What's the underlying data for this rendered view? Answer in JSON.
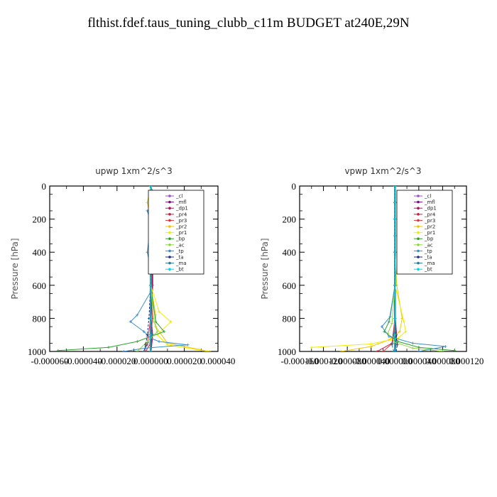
{
  "page": {
    "title": "flthist.fdef.taus_tuning_clubb_c11m  BUDGET at240E,29N"
  },
  "colors": {
    "cl": "#9a4fd6",
    "mfl": "#7a0f7a",
    "dp1": "#b0105a",
    "pr4": "#c81e3c",
    "pr3": "#e8303a",
    "pr2": "#f2c400",
    "pr1": "#f0ec00",
    "bp": "#2aa32a",
    "ac": "#8fd63a",
    "tp": "#3a8fc8",
    "ta": "#1a2a8a",
    "ma": "#2a7a9a",
    "bt": "#00d8e8"
  },
  "chart_data": [
    {
      "type": "line",
      "title": "upwp   1xm^2/s^3",
      "ylabel": "Pressure [hPa]",
      "xlabel": "",
      "xlim": [
        -6e-05,
        4e-05
      ],
      "ylim": [
        1000,
        0
      ],
      "y_reversed": true,
      "xticks": [
        -6e-05,
        -4e-05,
        -2e-05,
        0,
        2e-05,
        4e-05
      ],
      "xtick_labels": [
        "-0.000060",
        "-0.000040",
        "-0.000020",
        "0.000000",
        "0.000020",
        "0.000040"
      ],
      "yticks": [
        0,
        200,
        400,
        600,
        800,
        1000
      ],
      "ytick_labels": [
        "0",
        "200",
        "400",
        "600",
        "800",
        "1000"
      ],
      "legend_position": "top-right",
      "series": [
        {
          "name": "_cl",
          "key": "cl",
          "x": [
            0,
            0,
            0,
            0,
            0,
            0,
            0,
            0,
            0
          ],
          "y": [
            0,
            100,
            200,
            300,
            400,
            600,
            800,
            900,
            1000
          ]
        },
        {
          "name": "_mfl",
          "key": "mfl",
          "x": [
            0,
            0,
            0,
            0,
            0,
            0,
            0,
            0,
            0
          ],
          "y": [
            0,
            100,
            200,
            300,
            400,
            600,
            800,
            900,
            1000
          ]
        },
        {
          "name": "_dp1",
          "key": "dp1",
          "x": [
            0,
            0,
            0,
            0,
            1e-06,
            1e-06,
            0,
            1e-06,
            0
          ],
          "y": [
            0,
            100,
            200,
            300,
            400,
            600,
            800,
            900,
            1000
          ]
        },
        {
          "name": "_pr4",
          "key": "pr4",
          "x": [
            0,
            0,
            0,
            0,
            0,
            0,
            1e-06,
            0,
            -3e-06
          ],
          "y": [
            0,
            100,
            200,
            300,
            400,
            600,
            800,
            950,
            1000
          ]
        },
        {
          "name": "_pr3",
          "key": "pr3",
          "x": [
            0,
            0,
            0,
            0,
            0,
            0,
            0,
            -2e-06,
            -4e-06
          ],
          "y": [
            0,
            100,
            200,
            300,
            400,
            600,
            800,
            950,
            1000
          ]
        },
        {
          "name": "_pr2",
          "key": "pr2",
          "x": [
            0,
            -2e-06,
            0,
            0,
            0,
            0,
            3e-06,
            3e-06,
            1e-05,
            3.5e-05
          ],
          "y": [
            0,
            100,
            200,
            300,
            400,
            600,
            780,
            850,
            950,
            1000
          ]
        },
        {
          "name": "_pr1",
          "key": "pr1",
          "x": [
            0,
            0,
            0,
            0,
            0,
            0,
            5e-06,
            1.2e-05,
            4e-06,
            1e-05,
            3.4e-05
          ],
          "y": [
            0,
            100,
            200,
            300,
            400,
            600,
            760,
            820,
            900,
            960,
            1000
          ]
        },
        {
          "name": "_bp",
          "key": "bp",
          "x": [
            0,
            0,
            0,
            0,
            0,
            0,
            3e-06,
            8e-06,
            -8e-06,
            -2.5e-05,
            -5.5e-05
          ],
          "y": [
            0,
            100,
            200,
            300,
            400,
            600,
            820,
            880,
            940,
            975,
            995
          ]
        },
        {
          "name": "_ac",
          "key": "ac",
          "x": [
            0,
            0,
            0,
            0,
            0,
            0,
            2e-06,
            4e-06,
            -3e-06,
            -8e-06
          ],
          "y": [
            0,
            100,
            200,
            300,
            400,
            600,
            820,
            880,
            950,
            1000
          ]
        },
        {
          "name": "_tp",
          "key": "tp",
          "x": [
            0,
            4e-06,
            -2e-06,
            0,
            -2e-06,
            0,
            0,
            -8e-06,
            -1.2e-05,
            -4e-06,
            0,
            5e-06,
            2.2e-05,
            -3e-06,
            -1.6e-05
          ],
          "y": [
            0,
            100,
            150,
            220,
            400,
            500,
            640,
            780,
            820,
            880,
            920,
            940,
            960,
            980,
            1000
          ]
        },
        {
          "name": "_ta",
          "key": "ta",
          "x": [
            0,
            0,
            0,
            0,
            0,
            0,
            -1e-06,
            -2e-06,
            -3e-06,
            -4e-06
          ],
          "y": [
            0,
            100,
            200,
            300,
            400,
            600,
            800,
            900,
            960,
            1000
          ]
        },
        {
          "name": "_ma",
          "key": "ma",
          "x": [
            0,
            0,
            0,
            0,
            0,
            0,
            0,
            1e-06,
            -2e-06,
            -4e-06
          ],
          "y": [
            0,
            100,
            200,
            300,
            400,
            600,
            800,
            900,
            960,
            1000
          ]
        },
        {
          "name": "_bt",
          "key": "bt",
          "x": [
            0,
            0,
            0,
            0,
            0,
            0,
            0,
            0,
            0
          ],
          "y": [
            0,
            100,
            200,
            300,
            400,
            600,
            800,
            900,
            1000
          ]
        }
      ]
    },
    {
      "type": "line",
      "title": "vpwp   1xm^2/s^3",
      "ylabel": "Pressure [hPa]",
      "xlabel": "",
      "xlim": [
        -0.00016,
        0.00012
      ],
      "ylim": [
        1000,
        0
      ],
      "y_reversed": true,
      "xticks": [
        -0.00016,
        -0.00012,
        -8e-05,
        -4e-05,
        0,
        4e-05,
        8e-05,
        0.00012
      ],
      "xtick_labels": [
        "-0.000160",
        "-0.000120",
        "-0.000080",
        "-0.000040",
        "0.000000",
        "0.000040",
        "0.000080",
        "0.000120"
      ],
      "yticks": [
        0,
        200,
        400,
        600,
        800,
        1000
      ],
      "ytick_labels": [
        "0",
        "200",
        "400",
        "600",
        "800",
        "1000"
      ],
      "legend_position": "top-right",
      "series": [
        {
          "name": "_cl",
          "key": "cl",
          "x": [
            0,
            0,
            0,
            0,
            0,
            0,
            0,
            0,
            0
          ],
          "y": [
            0,
            100,
            200,
            300,
            400,
            600,
            800,
            900,
            1000
          ]
        },
        {
          "name": "_mfl",
          "key": "mfl",
          "x": [
            0,
            0,
            0,
            0,
            0,
            0,
            0,
            0,
            0
          ],
          "y": [
            0,
            100,
            200,
            300,
            400,
            600,
            800,
            900,
            1000
          ]
        },
        {
          "name": "_dp1",
          "key": "dp1",
          "x": [
            0,
            0,
            0,
            0,
            0,
            0,
            0,
            2e-06,
            0
          ],
          "y": [
            0,
            100,
            200,
            300,
            400,
            600,
            800,
            900,
            1000
          ]
        },
        {
          "name": "_pr4",
          "key": "pr4",
          "x": [
            0,
            0,
            0,
            0,
            0,
            0,
            0,
            -5e-06,
            -3e-05
          ],
          "y": [
            0,
            100,
            200,
            300,
            400,
            600,
            800,
            950,
            1000
          ]
        },
        {
          "name": "_pr3",
          "key": "pr3",
          "x": [
            0,
            0,
            0,
            0,
            0,
            0,
            0,
            -4e-06,
            -2e-05
          ],
          "y": [
            0,
            100,
            200,
            300,
            400,
            600,
            800,
            950,
            1000
          ]
        },
        {
          "name": "_pr2",
          "key": "pr2",
          "x": [
            0,
            0,
            0,
            0,
            0,
            3e-06,
            1.2e-05,
            8e-06,
            -1e-05,
            -4e-05,
            -9e-05
          ],
          "y": [
            0,
            100,
            200,
            300,
            400,
            600,
            800,
            880,
            930,
            970,
            1000
          ]
        },
        {
          "name": "_pr1",
          "key": "pr1",
          "x": [
            0,
            0,
            0,
            0,
            0,
            0,
            1.5e-05,
            1.8e-05,
            5e-06,
            -4e-05,
            -0.00014
          ],
          "y": [
            0,
            100,
            200,
            300,
            400,
            600,
            820,
            880,
            920,
            955,
            975
          ]
        },
        {
          "name": "_bp",
          "key": "bp",
          "x": [
            0,
            0,
            0,
            0,
            0,
            0,
            -1e-05,
            -1.8e-05,
            5e-06,
            4e-05,
            0.0001
          ],
          "y": [
            0,
            100,
            200,
            300,
            400,
            600,
            820,
            880,
            940,
            975,
            995
          ]
        },
        {
          "name": "_ac",
          "key": "ac",
          "x": [
            0,
            0,
            0,
            0,
            0,
            0,
            -5e-06,
            -1.2e-05,
            0,
            3e-05,
            8e-05
          ],
          "y": [
            0,
            100,
            200,
            300,
            400,
            600,
            830,
            890,
            945,
            980,
            1000
          ]
        },
        {
          "name": "_tp",
          "key": "tp",
          "x": [
            0,
            0,
            0,
            0,
            0,
            0,
            -8e-06,
            -2.2e-05,
            -1e-05,
            3e-05,
            8.5e-05,
            4e-05
          ],
          "y": [
            0,
            100,
            200,
            300,
            400,
            600,
            790,
            850,
            910,
            950,
            970,
            1000
          ]
        },
        {
          "name": "_ta",
          "key": "ta",
          "x": [
            0,
            0,
            0,
            0,
            0,
            0,
            0,
            2e-06,
            4e-06,
            2e-06
          ],
          "y": [
            0,
            100,
            200,
            300,
            400,
            600,
            800,
            900,
            960,
            1000
          ]
        },
        {
          "name": "_ma",
          "key": "ma",
          "x": [
            0,
            0,
            0,
            0,
            0,
            0,
            0,
            -2e-06,
            -5e-06,
            -2e-06
          ],
          "y": [
            0,
            100,
            200,
            300,
            400,
            600,
            800,
            900,
            960,
            1000
          ]
        },
        {
          "name": "_bt",
          "key": "bt",
          "x": [
            0,
            0,
            0,
            0,
            0,
            0,
            0,
            0,
            0
          ],
          "y": [
            0,
            100,
            200,
            300,
            400,
            600,
            800,
            900,
            1000
          ]
        }
      ]
    }
  ]
}
